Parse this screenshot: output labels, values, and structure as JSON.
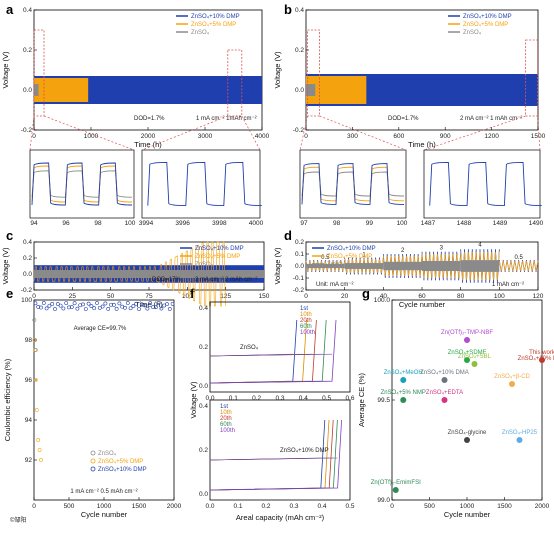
{
  "colors": {
    "blue": "#1f3fae",
    "orange": "#f5a20f",
    "gray": "#8a8a8a",
    "red": "#c0392b",
    "boxred": "#d9534f"
  },
  "panel_labels": [
    "a",
    "b",
    "c",
    "d",
    "e",
    "f",
    "g"
  ],
  "chart_data": [
    {
      "id": "a",
      "type": "line",
      "ylabel": "Voltage (V)",
      "xlabel": "Time (h)",
      "xlim": [
        0,
        4000
      ],
      "ylim": [
        -0.2,
        0.4
      ],
      "xticks": [
        0,
        1000,
        2000,
        3000,
        4000
      ],
      "yticks": [
        -0.2,
        0.0,
        0.2,
        0.4
      ],
      "series": [
        {
          "name": "ZnSO₄+10% DMP",
          "end_x": 4000,
          "amp": 0.07
        },
        {
          "name": "ZnSO₄+5% DMP",
          "end_x": 950,
          "amp": 0.06
        },
        {
          "name": "ZnSO₄",
          "end_x": 80,
          "amp": 0.03
        }
      ],
      "annotations": [
        "DOD=1.7%",
        "1 mA cm⁻²  1mAh cm⁻²"
      ],
      "insets": [
        {
          "xticks": [
            "94",
            "96",
            "98",
            "100"
          ]
        },
        {
          "xticks": [
            "3994",
            "3996",
            "3998",
            "4000"
          ]
        }
      ]
    },
    {
      "id": "b",
      "type": "line",
      "ylabel": "Voltage (V)",
      "xlabel": "Time (h)",
      "xlim": [
        0,
        1500
      ],
      "ylim": [
        -0.2,
        0.4
      ],
      "xticks": [
        0,
        300,
        600,
        900,
        1200,
        1500
      ],
      "yticks": [
        -0.2,
        0.0,
        0.2,
        0.4
      ],
      "series": [
        {
          "name": "ZnSO₄+10% DMP",
          "end_x": 1500,
          "amp": 0.08
        },
        {
          "name": "ZnSO₄+5% DMP",
          "end_x": 390,
          "amp": 0.07
        },
        {
          "name": "ZnSO₄",
          "end_x": 60,
          "amp": 0.03
        }
      ],
      "annotations": [
        "DOD=1.7%",
        "2 mA cm⁻²  1 mAh cm⁻²"
      ],
      "insets": [
        {
          "xticks": [
            "97",
            "98",
            "99",
            "100"
          ]
        },
        {
          "xticks": [
            "1487",
            "1488",
            "1489",
            "1490"
          ]
        }
      ]
    },
    {
      "id": "c",
      "type": "line",
      "ylabel": "Voltage (V)",
      "xlabel": "Time (h)",
      "xlim": [
        0,
        150
      ],
      "ylim": [
        -0.2,
        0.4
      ],
      "xticks": [
        0,
        25,
        50,
        75,
        100,
        125,
        150
      ],
      "yticks": [
        -0.2,
        0.0,
        0.2,
        0.4
      ],
      "series": [
        {
          "name": "ZnSO₄+10% DMP",
          "end_x": 150,
          "amp": 0.11
        },
        {
          "name": "ZnSO₄+5% DMP",
          "end_x": 125,
          "amp": 0.1
        },
        {
          "name": "ZnSO₄",
          "end_x": 150,
          "amp": 0.05
        }
      ],
      "annotations": [
        "DOD=17%",
        "2 mA cm⁻²  2 mAh cm⁻²"
      ]
    },
    {
      "id": "d",
      "type": "line",
      "ylabel": "Voltage (V)",
      "xlabel": "Cycle number",
      "xlim": [
        0,
        120
      ],
      "ylim": [
        -0.2,
        0.2
      ],
      "xticks": [
        0,
        20,
        40,
        60,
        80,
        100,
        120
      ],
      "yticks": [
        -0.2,
        -0.1,
        0.0,
        0.1,
        0.2
      ],
      "series": [
        {
          "name": "ZnSO₄+10% DMP"
        },
        {
          "name": "ZnSO₄+5% DMP"
        },
        {
          "name": "ZnSO₄"
        }
      ],
      "rate_segments": [
        {
          "label": "0.5",
          "x0": 0,
          "x1": 20
        },
        {
          "label": "1",
          "x0": 20,
          "x1": 40
        },
        {
          "label": "2",
          "x0": 40,
          "x1": 60
        },
        {
          "label": "3",
          "x0": 60,
          "x1": 80
        },
        {
          "label": "4",
          "x0": 80,
          "x1": 100
        },
        {
          "label": "0.5",
          "x0": 100,
          "x1": 120
        }
      ],
      "annotations": [
        "Unit: mA cm⁻²",
        "1 mAh cm⁻²"
      ]
    },
    {
      "id": "e",
      "type": "scatter",
      "ylabel": "Coulombic efficiency (%)",
      "xlabel": "Cycle number",
      "xlim": [
        0,
        2000
      ],
      "ylim": [
        90,
        100
      ],
      "xticks": [
        0,
        500,
        1000,
        1500,
        2000
      ],
      "yticks": [
        92,
        94,
        96,
        98,
        100
      ],
      "series": [
        {
          "name": "ZnSO₄"
        },
        {
          "name": "ZnSO₄+5% DMP"
        },
        {
          "name": "ZnSO₄+10% DMP"
        }
      ],
      "annotations": [
        "Average CE=99.7%",
        "1 mA cm⁻²  0.5 mAh cm⁻²"
      ]
    },
    {
      "id": "f",
      "type": "line",
      "ylabel": "Voltage (V)",
      "xlabel": "Areal capacity (mAh cm⁻²)",
      "subplots": [
        {
          "label": "ZnSO₄",
          "xlim": [
            0,
            0.6
          ],
          "xticks": [
            "0.0",
            "0.1",
            "0.2",
            "0.3",
            "0.4",
            "0.5",
            "0.6"
          ],
          "yticks": [
            "0.0",
            "0.2",
            "0.4"
          ],
          "legend": [
            "1st",
            "10th",
            "20th",
            "60th",
            "100th"
          ]
        },
        {
          "label": "ZnSO₄+10% DMP",
          "xlim": [
            0,
            0.5
          ],
          "xticks": [
            "0.0",
            "0.1",
            "0.2",
            "0.3",
            "0.4",
            "0.5"
          ],
          "yticks": [
            "0.0",
            "0.2",
            "0.4"
          ],
          "legend": [
            "1st",
            "10th",
            "20th",
            "60th",
            "100th"
          ]
        }
      ]
    },
    {
      "id": "g",
      "type": "scatter",
      "ylabel": "Average CE (%)",
      "xlabel": "Cycle number",
      "xlim": [
        0,
        2000
      ],
      "ylim": [
        99.0,
        100.0
      ],
      "xticks": [
        0,
        500,
        1000,
        1500,
        2000
      ],
      "yticks": [
        99.0,
        99.5,
        100.0
      ],
      "points": [
        {
          "label": "This work\nZnSO₄+10% DMP",
          "x": 2000,
          "y": 99.7,
          "color": "#c0392b"
        },
        {
          "label": "Zn(OTf)₂-TMP-NBF",
          "x": 1000,
          "y": 99.8,
          "color": "#b24bd0"
        },
        {
          "label": "ZnSO₄+SDMF",
          "x": 1000,
          "y": 99.7,
          "color": "#28a745"
        },
        {
          "label": "ZnSO₄+SBL",
          "x": 1100,
          "y": 99.68,
          "color": "#8fbf3f"
        },
        {
          "label": "ZnSO₄+MeOH",
          "x": 150,
          "y": 99.6,
          "color": "#17a2b8"
        },
        {
          "label": "ZnSO₄+10% DMA",
          "x": 700,
          "y": 99.6,
          "color": "#6c757d"
        },
        {
          "label": "ZnSO₄+β-CD",
          "x": 1600,
          "y": 99.58,
          "color": "#f0ad4e"
        },
        {
          "label": "ZnSO₄+EDTA",
          "x": 700,
          "y": 99.5,
          "color": "#d63384"
        },
        {
          "label": "ZnSO₄+5% NMP",
          "x": 150,
          "y": 99.5,
          "color": "#2e8b57"
        },
        {
          "label": "ZnSO₄-HP25",
          "x": 1700,
          "y": 99.3,
          "color": "#5dade2"
        },
        {
          "label": "ZnSO₄-glycine",
          "x": 1000,
          "y": 99.3,
          "color": "#444444"
        },
        {
          "label": "Zn(OTf)₂-EmimFSI",
          "x": 50,
          "y": 99.05,
          "color": "#2e8b57"
        }
      ]
    }
  ],
  "watermark": "©邹阳"
}
